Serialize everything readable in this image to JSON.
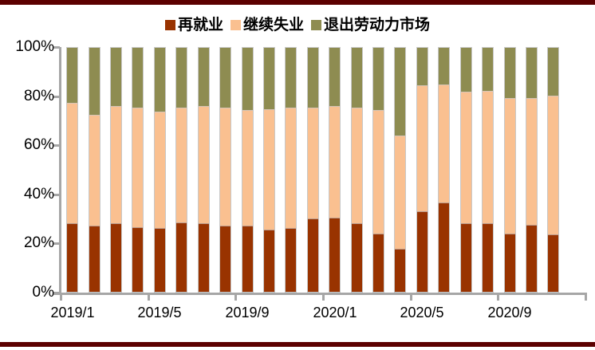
{
  "page": {
    "background": "#FFFFFF",
    "top_border_color": "#5C0000",
    "bottom_border_color": "#5C0000"
  },
  "chart_data": {
    "type": "bar",
    "stacked": true,
    "stacked_total": 100,
    "title": "",
    "xlabel": "",
    "ylabel": "",
    "ylim": [
      0,
      100
    ],
    "grid": false,
    "legend_position": "top",
    "axis_color": "#A6A6A6",
    "text_color": "#000000",
    "y_tick_labels": [
      "0%",
      "20%",
      "40%",
      "60%",
      "80%",
      "100%"
    ],
    "y_tick_values": [
      0,
      20,
      40,
      60,
      80,
      100
    ],
    "x_tick_labels": [
      "2019/1",
      "2019/5",
      "2019/9",
      "2020/1",
      "2020/5",
      "2020/9"
    ],
    "categories": [
      "2019/1",
      "2019/2",
      "2019/3",
      "2019/4",
      "2019/5",
      "2019/6",
      "2019/7",
      "2019/8",
      "2019/9",
      "2019/10",
      "2019/11",
      "2019/12",
      "2020/1",
      "2020/2",
      "2020/3",
      "2020/4",
      "2020/5",
      "2020/6",
      "2020/7",
      "2020/8",
      "2020/9",
      "2020/10",
      "2020/11"
    ],
    "series": [
      {
        "name": "再就业",
        "key": "reemployment",
        "color": "#993300",
        "values": [
          28,
          27,
          28,
          26.5,
          26,
          28.5,
          28,
          27,
          27,
          25.5,
          26,
          30,
          30.5,
          28,
          24,
          17.5,
          33,
          36.5,
          28,
          28,
          24,
          27.5,
          23.5
        ]
      },
      {
        "name": "继续失业",
        "key": "continued-unemployment",
        "color": "#FAC090",
        "values": [
          49.5,
          45.5,
          48,
          49,
          48,
          47,
          48,
          48.5,
          47.5,
          49.5,
          49.5,
          45.5,
          45.5,
          47.5,
          50.5,
          46.5,
          51.5,
          48.5,
          54,
          54.5,
          55.5,
          52,
          57
        ]
      },
      {
        "name": "退出劳动力市场",
        "key": "exit-labor-market",
        "color": "#8E8C51",
        "values": [
          22.5,
          27.5,
          24,
          24.5,
          26,
          24.5,
          24,
          24.5,
          25.5,
          25,
          24.5,
          24.5,
          24,
          24.5,
          25.5,
          36,
          15.5,
          15,
          18,
          17.5,
          20.5,
          20.5,
          19.5
        ]
      }
    ]
  }
}
